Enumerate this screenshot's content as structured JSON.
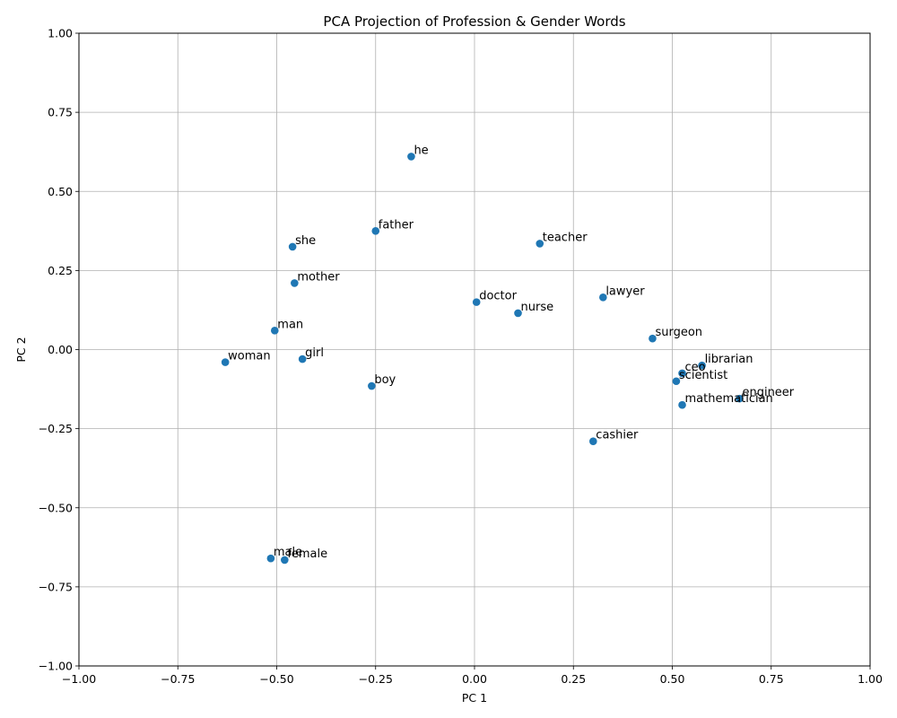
{
  "chart_data": {
    "type": "scatter",
    "title": "PCA Projection of Profession & Gender Words",
    "xlabel": "PC 1",
    "ylabel": "PC 2",
    "xlim": [
      -1.0,
      1.0
    ],
    "ylim": [
      -1.0,
      1.0
    ],
    "xticks": [
      "−1.00",
      "−0.75",
      "−0.50",
      "−0.25",
      "0.00",
      "0.25",
      "0.50",
      "0.75",
      "1.00"
    ],
    "yticks": [
      "−1.00",
      "−0.75",
      "−0.50",
      "−0.25",
      "0.00",
      "0.25",
      "0.50",
      "0.75",
      "1.00"
    ],
    "xtick_values": [
      -1.0,
      -0.75,
      -0.5,
      -0.25,
      0.0,
      0.25,
      0.5,
      0.75,
      1.0
    ],
    "ytick_values": [
      -1.0,
      -0.75,
      -0.5,
      -0.25,
      0.0,
      0.25,
      0.5,
      0.75,
      1.0
    ],
    "grid": true,
    "marker_color": "#1f77b4",
    "points": [
      {
        "label": "he",
        "x": -0.16,
        "y": 0.61
      },
      {
        "label": "father",
        "x": -0.25,
        "y": 0.375
      },
      {
        "label": "she",
        "x": -0.46,
        "y": 0.325
      },
      {
        "label": "mother",
        "x": -0.455,
        "y": 0.21
      },
      {
        "label": "man",
        "x": -0.505,
        "y": 0.06
      },
      {
        "label": "woman",
        "x": -0.63,
        "y": -0.04
      },
      {
        "label": "girl",
        "x": -0.435,
        "y": -0.03
      },
      {
        "label": "boy",
        "x": -0.26,
        "y": -0.115
      },
      {
        "label": "male",
        "x": -0.515,
        "y": -0.66
      },
      {
        "label": "female",
        "x": -0.48,
        "y": -0.665
      },
      {
        "label": "doctor",
        "x": 0.005,
        "y": 0.15
      },
      {
        "label": "nurse",
        "x": 0.11,
        "y": 0.115
      },
      {
        "label": "teacher",
        "x": 0.165,
        "y": 0.335
      },
      {
        "label": "lawyer",
        "x": 0.325,
        "y": 0.165
      },
      {
        "label": "surgeon",
        "x": 0.45,
        "y": 0.035
      },
      {
        "label": "librarian",
        "x": 0.575,
        "y": -0.05
      },
      {
        "label": "ceo",
        "x": 0.525,
        "y": -0.075
      },
      {
        "label": "scientist",
        "x": 0.51,
        "y": -0.1
      },
      {
        "label": "mathematician",
        "x": 0.525,
        "y": -0.175
      },
      {
        "label": "engineer",
        "x": 0.67,
        "y": -0.155
      },
      {
        "label": "cashier",
        "x": 0.3,
        "y": -0.29
      }
    ]
  }
}
